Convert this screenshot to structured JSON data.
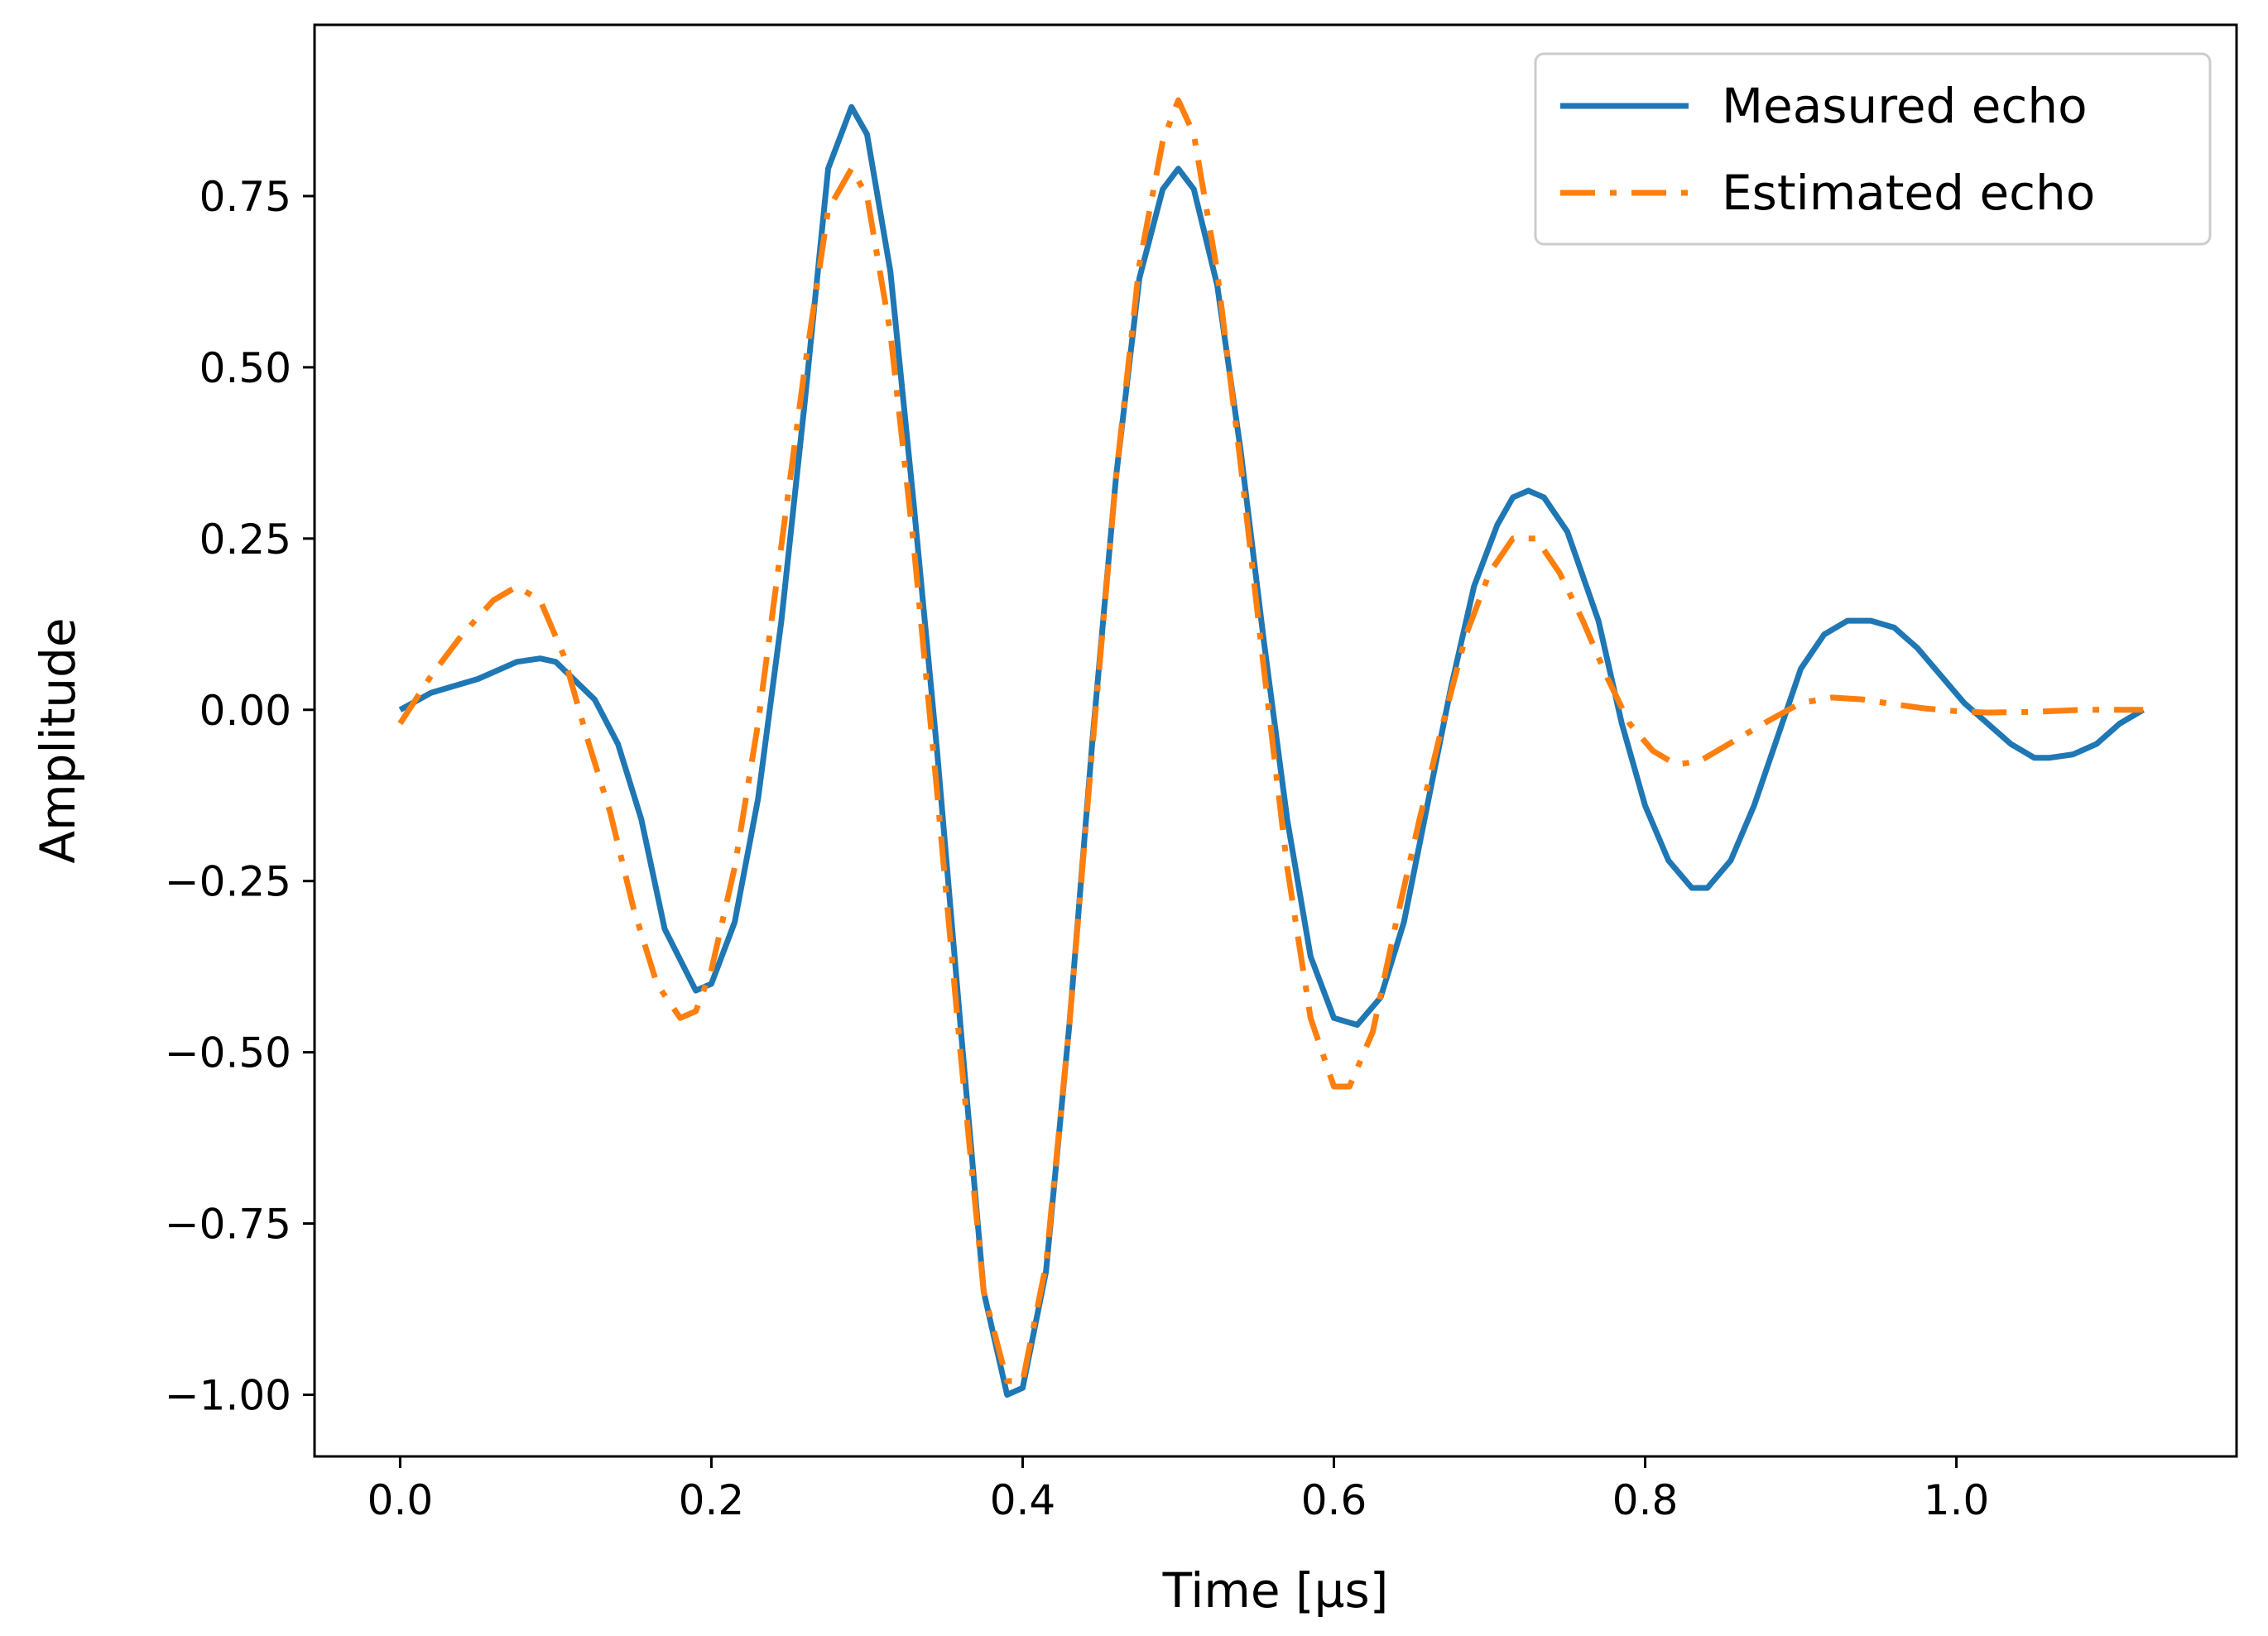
{
  "chart_data": {
    "type": "line",
    "title": "",
    "xlabel": "Time [µs]",
    "ylabel": "Amplitude",
    "xlim": [
      -0.055,
      1.18
    ],
    "ylim": [
      -1.09,
      1.0
    ],
    "grid": false,
    "legend_position": "top-right",
    "x_ticks": [
      0.0,
      0.2,
      0.4,
      0.6,
      0.8,
      1.0
    ],
    "x_tick_labels": [
      "0.0",
      "0.2",
      "0.4",
      "0.6",
      "0.8",
      "1.0"
    ],
    "y_ticks": [
      0.75,
      0.5,
      0.25,
      0.0,
      -0.25,
      -0.5,
      -0.75,
      -1.0
    ],
    "y_tick_labels": [
      "0.75",
      "0.50",
      "0.25",
      "0.00",
      "−0.25",
      "−0.50",
      "−0.75",
      "−1.00"
    ],
    "series": [
      {
        "name": "Measured echo",
        "color": "#1f77b4",
        "style": "solid",
        "x": [
          0.0,
          0.02,
          0.05,
          0.075,
          0.09,
          0.1,
          0.125,
          0.14,
          0.155,
          0.17,
          0.19,
          0.2,
          0.215,
          0.23,
          0.245,
          0.26,
          0.275,
          0.29,
          0.3,
          0.315,
          0.33,
          0.345,
          0.36,
          0.375,
          0.39,
          0.4,
          0.415,
          0.43,
          0.445,
          0.46,
          0.475,
          0.49,
          0.5,
          0.51,
          0.525,
          0.54,
          0.555,
          0.57,
          0.585,
          0.6,
          0.615,
          0.63,
          0.645,
          0.66,
          0.675,
          0.69,
          0.705,
          0.715,
          0.725,
          0.735,
          0.75,
          0.77,
          0.785,
          0.8,
          0.815,
          0.83,
          0.84,
          0.855,
          0.87,
          0.885,
          0.9,
          0.915,
          0.93,
          0.945,
          0.96,
          0.975,
          0.99,
          1.005,
          1.02,
          1.035,
          1.05,
          1.06,
          1.075,
          1.09,
          1.105,
          1.12
        ],
        "y": [
          0.0,
          0.025,
          0.045,
          0.07,
          0.075,
          0.07,
          0.015,
          -0.05,
          -0.16,
          -0.32,
          -0.41,
          -0.4,
          -0.31,
          -0.13,
          0.13,
          0.45,
          0.79,
          0.88,
          0.84,
          0.64,
          0.3,
          -0.06,
          -0.46,
          -0.85,
          -1.0,
          -0.99,
          -0.82,
          -0.46,
          -0.04,
          0.34,
          0.63,
          0.76,
          0.79,
          0.76,
          0.62,
          0.38,
          0.1,
          -0.16,
          -0.36,
          -0.45,
          -0.46,
          -0.42,
          -0.31,
          -0.14,
          0.03,
          0.18,
          0.27,
          0.31,
          0.32,
          0.31,
          0.26,
          0.13,
          -0.02,
          -0.14,
          -0.22,
          -0.26,
          -0.26,
          -0.22,
          -0.14,
          -0.04,
          0.06,
          0.11,
          0.13,
          0.13,
          0.12,
          0.09,
          0.05,
          0.01,
          -0.02,
          -0.05,
          -0.07,
          -0.07,
          -0.065,
          -0.05,
          -0.02,
          0.0
        ]
      },
      {
        "name": "Estimated echo",
        "color": "#ff7f0e",
        "style": "dashdot",
        "x": [
          0.0,
          0.02,
          0.04,
          0.06,
          0.075,
          0.09,
          0.105,
          0.12,
          0.135,
          0.15,
          0.165,
          0.18,
          0.19,
          0.2,
          0.215,
          0.23,
          0.245,
          0.26,
          0.275,
          0.29,
          0.3,
          0.315,
          0.33,
          0.345,
          0.36,
          0.375,
          0.39,
          0.4,
          0.415,
          0.43,
          0.445,
          0.46,
          0.475,
          0.49,
          0.5,
          0.51,
          0.525,
          0.54,
          0.555,
          0.57,
          0.585,
          0.6,
          0.61,
          0.625,
          0.64,
          0.655,
          0.67,
          0.685,
          0.7,
          0.715,
          0.73,
          0.745,
          0.76,
          0.775,
          0.79,
          0.805,
          0.82,
          0.835,
          0.85,
          0.865,
          0.88,
          0.9,
          0.92,
          0.94,
          0.96,
          0.98,
          1.0,
          1.02,
          1.05,
          1.08,
          1.12
        ],
        "y": [
          -0.02,
          0.05,
          0.11,
          0.16,
          0.18,
          0.16,
          0.08,
          -0.04,
          -0.15,
          -0.29,
          -0.4,
          -0.45,
          -0.44,
          -0.38,
          -0.23,
          -0.02,
          0.24,
          0.5,
          0.73,
          0.79,
          0.75,
          0.55,
          0.24,
          -0.12,
          -0.5,
          -0.85,
          -0.98,
          -0.98,
          -0.81,
          -0.46,
          -0.05,
          0.34,
          0.65,
          0.83,
          0.89,
          0.84,
          0.64,
          0.36,
          0.06,
          -0.23,
          -0.45,
          -0.55,
          -0.55,
          -0.47,
          -0.31,
          -0.16,
          -0.02,
          0.11,
          0.2,
          0.25,
          0.25,
          0.2,
          0.13,
          0.05,
          -0.02,
          -0.06,
          -0.08,
          -0.075,
          -0.055,
          -0.035,
          -0.015,
          0.01,
          0.018,
          0.015,
          0.008,
          0.002,
          -0.002,
          -0.004,
          -0.003,
          0.0,
          0.0
        ]
      }
    ]
  }
}
